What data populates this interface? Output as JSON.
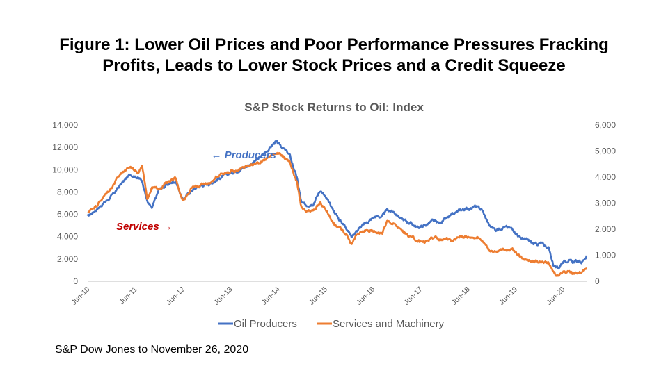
{
  "figure": {
    "title_line1": "Figure 1: Lower Oil Prices and Poor Performance Pressures Fracking",
    "title_line2": "Profits, Leads to Lower Stock Prices and a Credit Squeeze",
    "source": "S&P Dow Jones to November 26, 2020"
  },
  "chart_data": {
    "type": "line",
    "title": "S&P Stock Returns to Oil: Index",
    "x_ticks": [
      "Jun-10",
      "Jun-11",
      "Jun-12",
      "Jun-13",
      "Jun-14",
      "Jun-15",
      "Jun-16",
      "Jun-17",
      "Jun-18",
      "Jun-19",
      "Jun-20"
    ],
    "x_range": [
      2010.4,
      2020.9
    ],
    "y_left": {
      "range": [
        0,
        14000
      ],
      "ticks": [
        "0",
        "2,000",
        "4,000",
        "6,000",
        "8,000",
        "10,000",
        "12,000",
        "14,000"
      ],
      "tick_values": [
        0,
        2000,
        4000,
        6000,
        8000,
        10000,
        12000,
        14000
      ]
    },
    "y_right": {
      "range": [
        0,
        6000
      ],
      "ticks": [
        "0",
        "1,000",
        "2,000",
        "3,000",
        "4,000",
        "5,000",
        "6,000"
      ],
      "tick_values": [
        0,
        1000,
        2000,
        3000,
        4000,
        5000,
        6000
      ]
    },
    "series": [
      {
        "name": "Oil Producers",
        "axis": "left",
        "color": "#4472C4",
        "points": [
          [
            2010.4,
            5800
          ],
          [
            2010.6,
            6500
          ],
          [
            2010.9,
            7600
          ],
          [
            2011.1,
            8700
          ],
          [
            2011.3,
            9600
          ],
          [
            2011.45,
            9300
          ],
          [
            2011.55,
            9000
          ],
          [
            2011.65,
            7200
          ],
          [
            2011.75,
            6500
          ],
          [
            2011.9,
            8200
          ],
          [
            2012.1,
            8700
          ],
          [
            2012.25,
            9000
          ],
          [
            2012.4,
            7300
          ],
          [
            2012.6,
            8200
          ],
          [
            2012.8,
            8600
          ],
          [
            2013.0,
            8800
          ],
          [
            2013.2,
            9300
          ],
          [
            2013.4,
            9700
          ],
          [
            2013.6,
            10000
          ],
          [
            2013.8,
            10400
          ],
          [
            2014.0,
            11000
          ],
          [
            2014.2,
            11800
          ],
          [
            2014.35,
            12500
          ],
          [
            2014.5,
            12000
          ],
          [
            2014.65,
            11300
          ],
          [
            2014.8,
            9300
          ],
          [
            2014.9,
            7000
          ],
          [
            2015.0,
            6800
          ],
          [
            2015.15,
            7000
          ],
          [
            2015.3,
            8200
          ],
          [
            2015.45,
            7200
          ],
          [
            2015.6,
            6200
          ],
          [
            2015.7,
            5500
          ],
          [
            2015.85,
            4800
          ],
          [
            2015.95,
            4000
          ],
          [
            2016.05,
            4500
          ],
          [
            2016.25,
            5200
          ],
          [
            2016.45,
            5800
          ],
          [
            2016.6,
            5800
          ],
          [
            2016.7,
            6400
          ],
          [
            2016.85,
            6200
          ],
          [
            2017.0,
            5600
          ],
          [
            2017.2,
            5200
          ],
          [
            2017.35,
            4800
          ],
          [
            2017.5,
            5000
          ],
          [
            2017.65,
            5400
          ],
          [
            2017.8,
            5200
          ],
          [
            2017.95,
            5600
          ],
          [
            2018.1,
            6000
          ],
          [
            2018.25,
            6400
          ],
          [
            2018.4,
            6500
          ],
          [
            2018.55,
            6700
          ],
          [
            2018.7,
            6400
          ],
          [
            2018.85,
            5000
          ],
          [
            2019.0,
            4600
          ],
          [
            2019.15,
            4900
          ],
          [
            2019.35,
            4700
          ],
          [
            2019.5,
            3900
          ],
          [
            2019.65,
            3700
          ],
          [
            2019.8,
            3300
          ],
          [
            2019.95,
            3400
          ],
          [
            2020.1,
            3000
          ],
          [
            2020.2,
            1500
          ],
          [
            2020.3,
            1100
          ],
          [
            2020.4,
            1800
          ],
          [
            2020.5,
            1900
          ],
          [
            2020.6,
            1700
          ],
          [
            2020.7,
            1800
          ],
          [
            2020.8,
            1700
          ],
          [
            2020.9,
            2300
          ]
        ]
      },
      {
        "name": "Services and Machinery",
        "axis": "right",
        "color": "#ED7D31",
        "points": [
          [
            2010.4,
            2650
          ],
          [
            2010.6,
            2950
          ],
          [
            2010.9,
            3600
          ],
          [
            2011.1,
            4150
          ],
          [
            2011.3,
            4400
          ],
          [
            2011.45,
            4200
          ],
          [
            2011.55,
            4400
          ],
          [
            2011.65,
            3150
          ],
          [
            2011.75,
            3600
          ],
          [
            2011.9,
            3550
          ],
          [
            2012.1,
            3850
          ],
          [
            2012.25,
            3950
          ],
          [
            2012.4,
            3100
          ],
          [
            2012.6,
            3600
          ],
          [
            2012.8,
            3700
          ],
          [
            2013.0,
            3800
          ],
          [
            2013.2,
            4150
          ],
          [
            2013.4,
            4200
          ],
          [
            2013.6,
            4300
          ],
          [
            2013.8,
            4450
          ],
          [
            2014.0,
            4550
          ],
          [
            2014.2,
            4750
          ],
          [
            2014.35,
            4950
          ],
          [
            2014.5,
            4800
          ],
          [
            2014.65,
            4600
          ],
          [
            2014.8,
            3800
          ],
          [
            2014.9,
            2800
          ],
          [
            2015.0,
            2650
          ],
          [
            2015.15,
            2700
          ],
          [
            2015.3,
            3000
          ],
          [
            2015.45,
            2650
          ],
          [
            2015.6,
            2150
          ],
          [
            2015.7,
            2050
          ],
          [
            2015.85,
            1800
          ],
          [
            2015.95,
            1450
          ],
          [
            2016.05,
            1750
          ],
          [
            2016.25,
            1950
          ],
          [
            2016.45,
            1900
          ],
          [
            2016.6,
            1850
          ],
          [
            2016.7,
            2300
          ],
          [
            2016.85,
            2200
          ],
          [
            2017.0,
            1950
          ],
          [
            2017.2,
            1700
          ],
          [
            2017.35,
            1550
          ],
          [
            2017.5,
            1500
          ],
          [
            2017.65,
            1700
          ],
          [
            2017.8,
            1600
          ],
          [
            2017.95,
            1650
          ],
          [
            2018.1,
            1550
          ],
          [
            2018.25,
            1750
          ],
          [
            2018.4,
            1700
          ],
          [
            2018.55,
            1700
          ],
          [
            2018.7,
            1600
          ],
          [
            2018.85,
            1200
          ],
          [
            2019.0,
            1100
          ],
          [
            2019.15,
            1250
          ],
          [
            2019.35,
            1200
          ],
          [
            2019.5,
            950
          ],
          [
            2019.65,
            850
          ],
          [
            2019.8,
            750
          ],
          [
            2019.95,
            750
          ],
          [
            2020.1,
            700
          ],
          [
            2020.2,
            350
          ],
          [
            2020.3,
            200
          ],
          [
            2020.4,
            350
          ],
          [
            2020.5,
            350
          ],
          [
            2020.6,
            300
          ],
          [
            2020.7,
            300
          ],
          [
            2020.8,
            320
          ],
          [
            2020.9,
            500
          ]
        ]
      }
    ],
    "annotations": [
      {
        "text": "← Producers",
        "color": "#4472C4",
        "x": 2013.0,
        "y": 11000,
        "axis": "left"
      },
      {
        "text": "Services →",
        "color": "#C00000",
        "x": 2011.0,
        "y": 4600,
        "axis": "left"
      }
    ],
    "legend": {
      "position": "bottom"
    },
    "grid": false
  }
}
